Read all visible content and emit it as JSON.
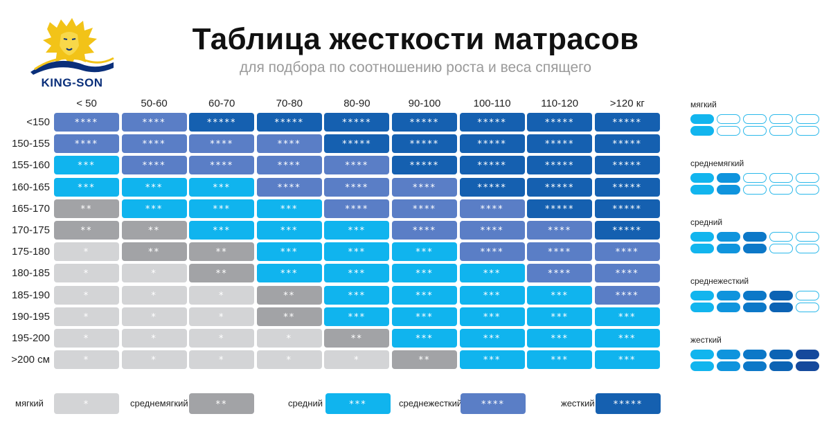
{
  "brand": {
    "name": "KING-SON"
  },
  "title": "Таблица жесткости матрасов",
  "subtitle": "для подбора по соотношению роста и веса спящего",
  "columns": [
    "< 50",
    "50-60",
    "60-70",
    "70-80",
    "80-90",
    "90-100",
    "100-110",
    "110-120",
    ">120 кг"
  ],
  "rows": [
    "<150",
    "150-155",
    "155-160",
    "160-165",
    "165-170",
    "170-175",
    "175-180",
    "180-185",
    "185-190",
    "190-195",
    "195-200",
    ">200 см"
  ],
  "levels": [
    [
      4,
      4,
      5,
      5,
      5,
      5,
      5,
      5,
      5
    ],
    [
      4,
      4,
      4,
      4,
      5,
      5,
      5,
      5,
      5
    ],
    [
      3,
      4,
      4,
      4,
      4,
      5,
      5,
      5,
      5
    ],
    [
      3,
      3,
      3,
      4,
      4,
      4,
      5,
      5,
      5
    ],
    [
      2,
      3,
      3,
      3,
      4,
      4,
      4,
      5,
      5
    ],
    [
      2,
      2,
      3,
      3,
      3,
      4,
      4,
      4,
      5
    ],
    [
      1,
      2,
      2,
      3,
      3,
      3,
      4,
      4,
      4
    ],
    [
      1,
      1,
      2,
      3,
      3,
      3,
      3,
      4,
      4
    ],
    [
      1,
      1,
      1,
      2,
      3,
      3,
      3,
      3,
      4
    ],
    [
      1,
      1,
      1,
      2,
      3,
      3,
      3,
      3,
      3
    ],
    [
      1,
      1,
      1,
      1,
      2,
      3,
      3,
      3,
      3
    ],
    [
      1,
      1,
      1,
      1,
      1,
      2,
      3,
      3,
      3
    ]
  ],
  "stars": [
    "*",
    "**",
    "***",
    "****",
    "*****"
  ],
  "level_colors": [
    "#d3d4d6",
    "#a2a3a6",
    "#10b4ee",
    "#5a7ec6",
    "#1560b0"
  ],
  "legend": [
    {
      "label": "мягкий",
      "stars": "*"
    },
    {
      "label": "среднемягкий",
      "stars": "**"
    },
    {
      "label": "средний",
      "stars": "***"
    },
    {
      "label": "среднежесткий",
      "stars": "****"
    },
    {
      "label": "жесткий",
      "stars": "*****"
    }
  ],
  "scale": [
    {
      "label": "мягкий",
      "level": 1
    },
    {
      "label": "среднемягкий",
      "level": 2
    },
    {
      "label": "средний",
      "level": 3
    },
    {
      "label": "среднежесткий",
      "level": 4
    },
    {
      "label": "жесткий",
      "level": 5
    }
  ]
}
